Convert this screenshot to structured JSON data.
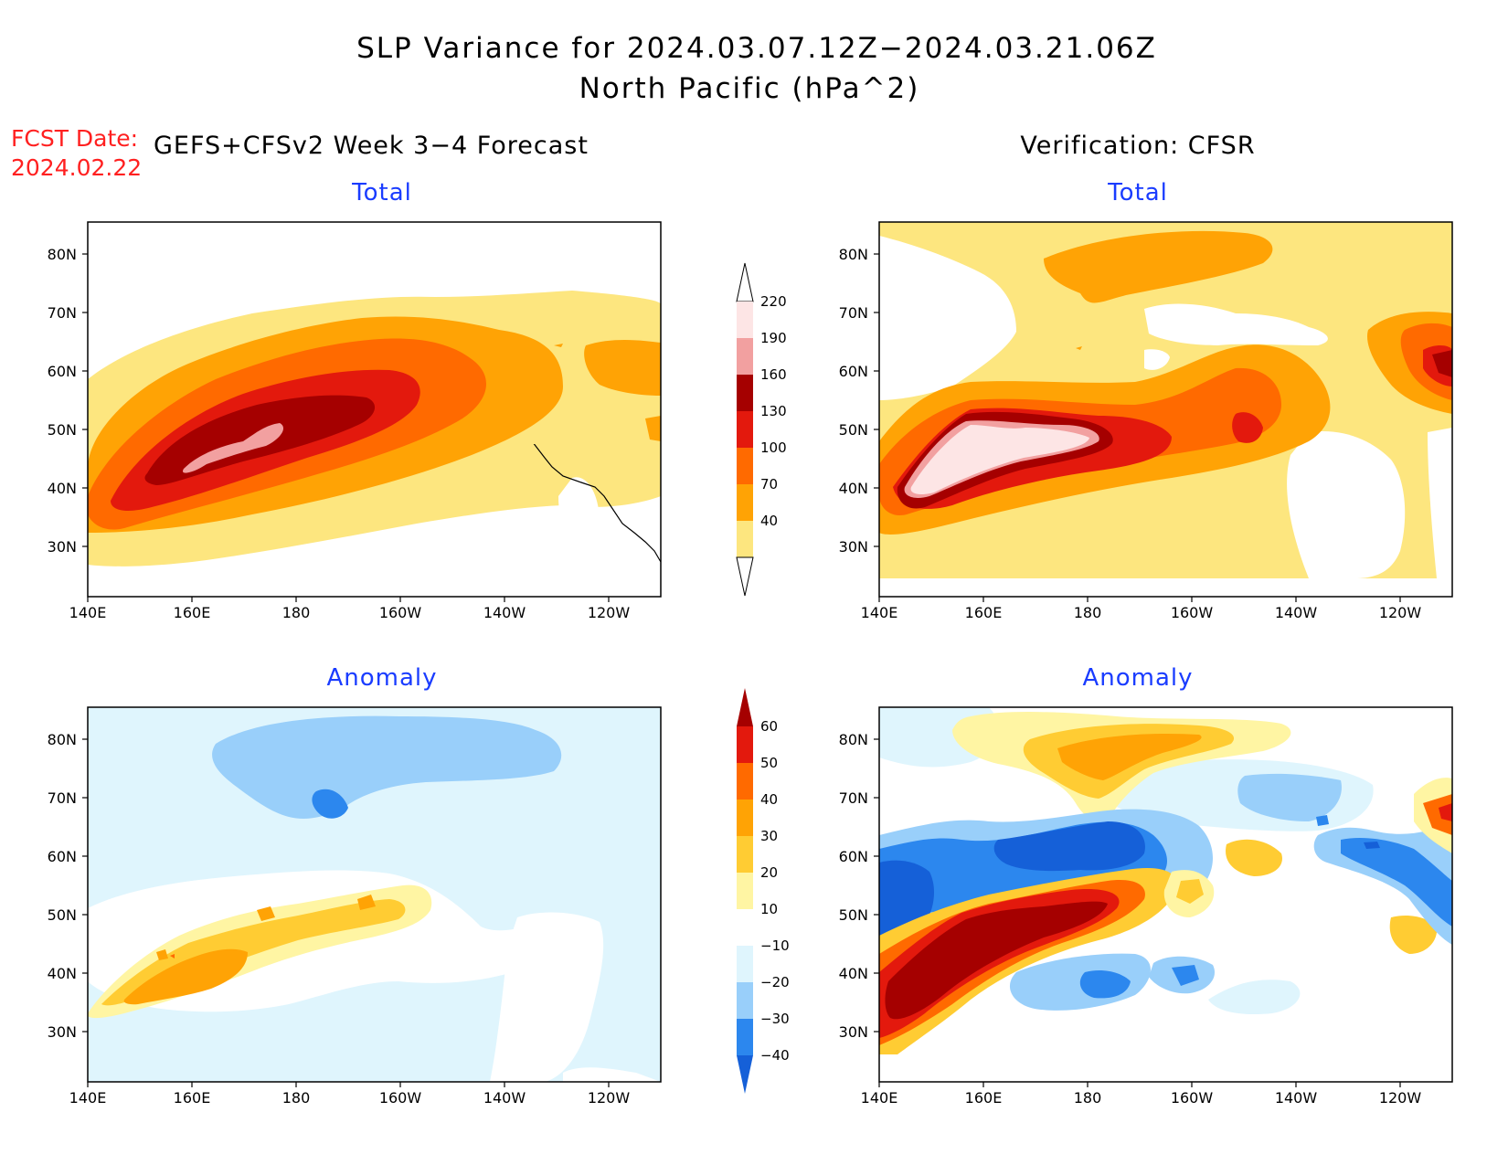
{
  "title": {
    "line1": "SLP Variance for 2024.03.07.12Z−2024.03.21.06Z",
    "line2": "North Pacific (hPa^2)"
  },
  "fcst": {
    "label": "FCST Date:",
    "date": "2024.02.22"
  },
  "columns": {
    "left": "GEFS+CFSv2 Week 3−4 Forecast",
    "right": "Verification: CFSR"
  },
  "panels": {
    "top_left": "Total",
    "top_right": "Total",
    "bottom_left": "Anomaly",
    "bottom_right": "Anomaly"
  },
  "axes": {
    "lat_labels": [
      "80N",
      "70N",
      "60N",
      "50N",
      "40N",
      "30N"
    ],
    "lon_labels": [
      "140E",
      "160E",
      "180",
      "160W",
      "140W",
      "120W"
    ]
  },
  "colorbars": {
    "total": {
      "levels": [
        "40",
        "70",
        "100",
        "130",
        "160",
        "190",
        "220"
      ],
      "colors": [
        "#fde67f",
        "#ffa305",
        "#ff6a00",
        "#e3190d",
        "#a50000",
        "#f2a0a0",
        "#fde5e5"
      ]
    },
    "anomaly": {
      "levels": [
        "−40",
        "−30",
        "−20",
        "−10",
        "10",
        "20",
        "30",
        "40",
        "50",
        "60"
      ],
      "colors": [
        "#1560d8",
        "#2c87ee",
        "#99cffa",
        "#dff5fd",
        "#ffffff",
        "#fff5a3",
        "#ffcc33",
        "#ffa305",
        "#ff6a00",
        "#e3190d",
        "#a50000"
      ]
    }
  }
}
